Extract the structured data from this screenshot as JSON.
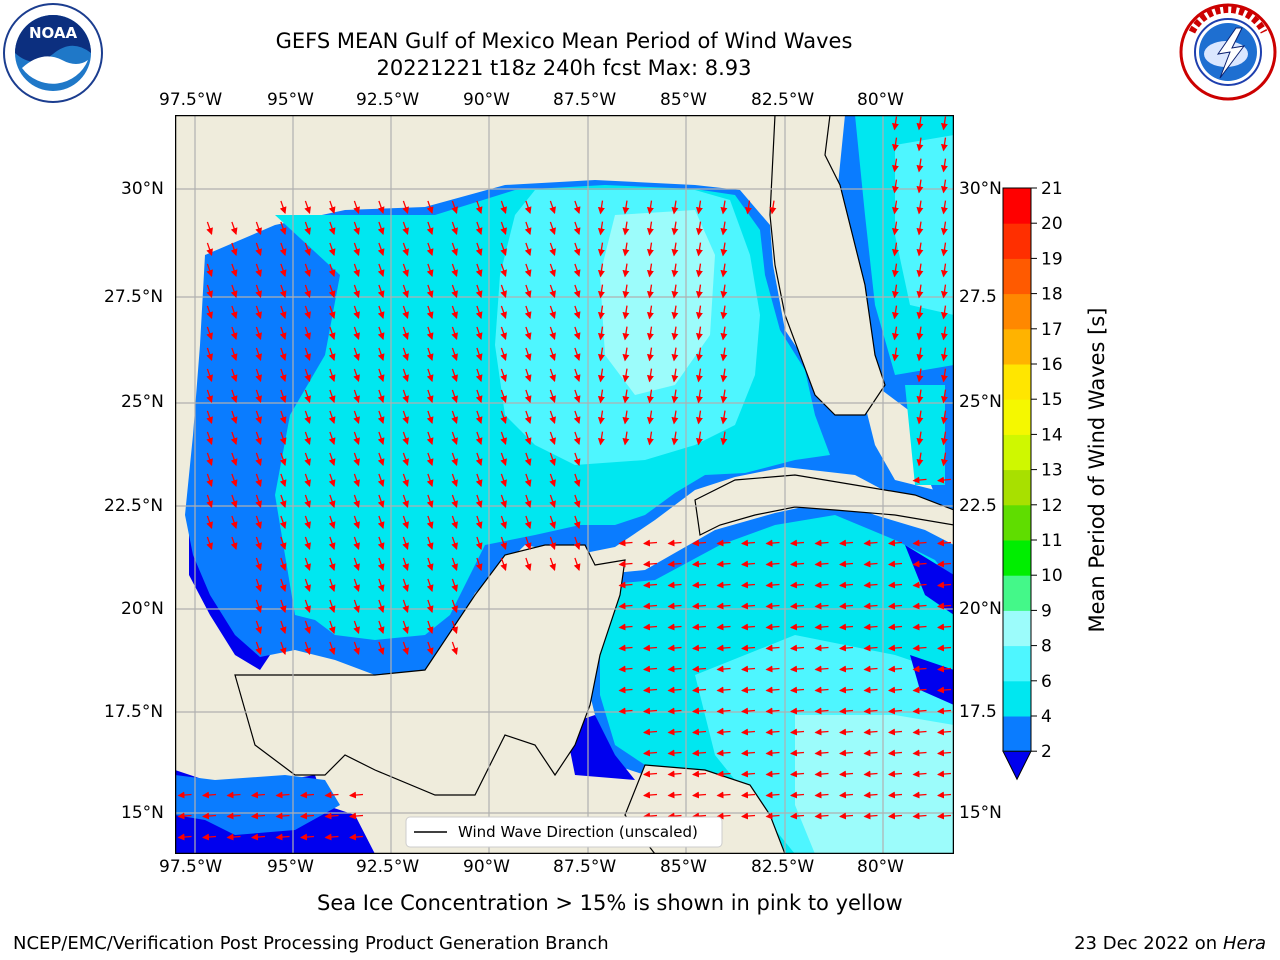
{
  "header": {
    "title_line1": "GEFS MEAN Gulf of Mexico Mean Period of Wind Waves",
    "title_line2": "20221221 t18z 240h fcst   Max: 8.93"
  },
  "logos": {
    "noaa_text": "NOAA",
    "noaa_ring": "NATIONAL OCEANIC AND ATMOSPHERIC ADMINISTRATION · U.S. DEPARTMENT OF COMMERCE",
    "nws_ring": "NATIONAL WEATHER SERVICE"
  },
  "map": {
    "lon_labels": [
      "97.5°W",
      "95°W",
      "92.5°W",
      "90°W",
      "87.5°W",
      "85°W",
      "82.5°W",
      "80°W"
    ],
    "lat_labels_left": [
      "30°N",
      "27.5°N",
      "25°N",
      "22.5°N",
      "20°N",
      "17.5°N",
      "15°N"
    ],
    "lat_labels_right": [
      "30°N",
      "27.5",
      "25°N",
      "22.5",
      "20°N",
      "17.5",
      "15°N"
    ],
    "legend_label": "Wind Wave Direction (unscaled)",
    "colors": {
      "land": "#efecdc",
      "coast": "#000000",
      "grid": "#b0b0b0",
      "arrow": "#ff0000"
    }
  },
  "colorbar": {
    "label": "Mean Period of Wind Waves [s]",
    "ticks": [
      "21",
      "20",
      "19",
      "18",
      "17",
      "16",
      "15",
      "14",
      "13",
      "12",
      "11",
      "10",
      "9",
      "8",
      "6",
      "4",
      "2"
    ],
    "colors": [
      "#0000ee",
      "#0a7cff",
      "#00e7f0",
      "#4ef6ff",
      "#9cfcfb",
      "#44f889",
      "#00ee00",
      "#5fdd00",
      "#a8e000",
      "#cff800",
      "#f5f800",
      "#ffe600",
      "#ffb300",
      "#ff8800",
      "#ff5a00",
      "#ff2f00",
      "#ff0000"
    ]
  },
  "caption": "Sea Ice Concentration > 15% is shown in pink to yellow",
  "footer": {
    "left": "NCEP/EMC/Verification Post Processing Product Generation Branch",
    "date": "23 Dec 2022 on",
    "machine": "Hera"
  }
}
